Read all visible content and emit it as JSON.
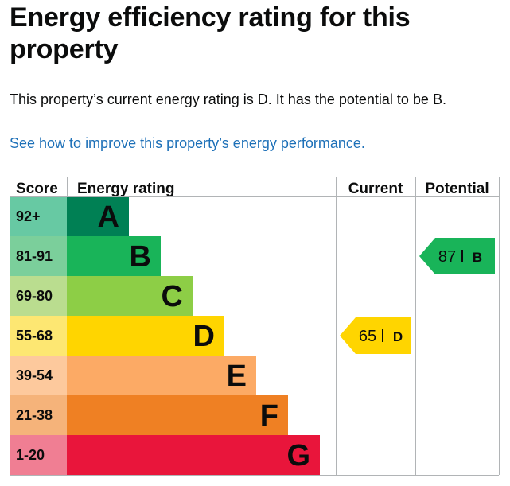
{
  "page": {
    "title": "Energy efficiency rating for this property",
    "summary": "This property’s current energy rating is D. It has the potential to be B.",
    "improve_link": "See how to improve this property’s energy performance."
  },
  "chart_data": {
    "type": "bar",
    "headers": {
      "score": "Score",
      "rating": "Energy rating",
      "current": "Current",
      "potential": "Potential"
    },
    "bands": [
      {
        "score": "92+",
        "letter": "A",
        "band_color": "#008054",
        "score_color": "#67c9a3"
      },
      {
        "score": "81-91",
        "letter": "B",
        "band_color": "#19b459",
        "score_color": "#7bcf9b"
      },
      {
        "score": "69-80",
        "letter": "C",
        "band_color": "#8dce46",
        "score_color": "#badd8f"
      },
      {
        "score": "55-68",
        "letter": "D",
        "band_color": "#ffd500",
        "score_color": "#fde772"
      },
      {
        "score": "39-54",
        "letter": "E",
        "band_color": "#fcaa65",
        "score_color": "#fdc99d"
      },
      {
        "score": "21-38",
        "letter": "F",
        "band_color": "#ef8023",
        "score_color": "#f5b37a"
      },
      {
        "score": "1-20",
        "letter": "G",
        "band_color": "#e9153b",
        "score_color": "#f07e93"
      }
    ],
    "current": {
      "value": 65,
      "letter": "D"
    },
    "potential": {
      "value": 87,
      "letter": "B"
    },
    "colors": {
      "grid": "#b1b4b6",
      "text": "#0b0c0c"
    }
  }
}
